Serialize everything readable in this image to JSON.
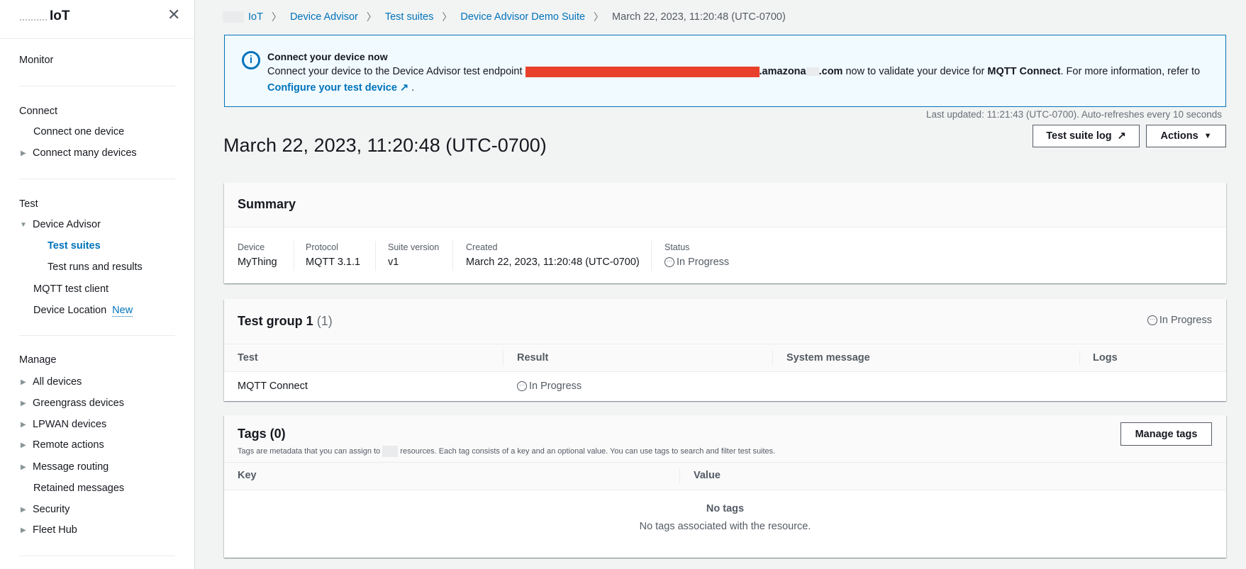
{
  "sidebar": {
    "title": "IoT",
    "sections": [
      {
        "heading": "Monitor"
      },
      {
        "heading": "Connect",
        "items": [
          "Connect one device",
          "Connect many devices"
        ]
      },
      {
        "heading": "Test",
        "items": [
          "Device Advisor",
          "Test suites",
          "Test runs and results",
          "MQTT test client",
          "Device Location"
        ],
        "new_badge": "New"
      },
      {
        "heading": "Manage",
        "items": [
          "All devices",
          "Greengrass devices",
          "LPWAN devices",
          "Remote actions",
          "Message routing",
          "Retained messages",
          "Security",
          "Fleet Hub"
        ]
      }
    ]
  },
  "breadcrumb": [
    "IoT",
    "Device Advisor",
    "Test suites",
    "Device Advisor Demo Suite",
    "March 22, 2023, 11:20:48 (UTC-0700)"
  ],
  "info": {
    "title": "Connect your device now",
    "text_before": "Connect your device to the Device Advisor test endpoint ",
    "endpoint_suffix_a": ".amazona",
    "endpoint_suffix_b": ".com",
    "text_mid": " now to validate your device for ",
    "test_name": "MQTT Connect",
    "text_after": ". For more information, refer to",
    "link": "Configure your test device",
    "period": "."
  },
  "last_updated": "Last updated: 11:21:43 (UTC-0700). Auto-refreshes every 10 seconds",
  "page_title": "March 22, 2023, 11:20:48 (UTC-0700)",
  "buttons": {
    "log": "Test suite log",
    "actions": "Actions",
    "manage_tags": "Manage tags"
  },
  "summary": {
    "title": "Summary",
    "fields": [
      {
        "label": "Device",
        "value": "MyThing"
      },
      {
        "label": "Protocol",
        "value": "MQTT 3.1.1"
      },
      {
        "label": "Suite version",
        "value": "v1"
      },
      {
        "label": "Created",
        "value": "March 22, 2023, 11:20:48 (UTC-0700)"
      },
      {
        "label": "Status",
        "value": "In Progress"
      }
    ]
  },
  "test_group": {
    "title": "Test group 1",
    "count": "(1)",
    "status": "In Progress",
    "columns": [
      "Test",
      "Result",
      "System message",
      "Logs"
    ],
    "rows": [
      {
        "test": "MQTT Connect",
        "result": "In Progress",
        "system_message": "",
        "logs": ""
      }
    ]
  },
  "tags": {
    "title": "Tags (0)",
    "desc_a": "Tags are metadata that you can assign to ",
    "desc_b": " resources. Each tag consists of a key and an optional value. You can use tags to search and filter test suites.",
    "columns": [
      "Key",
      "Value"
    ],
    "empty_title": "No tags",
    "empty_desc": "No tags associated with the resource."
  },
  "colors": {
    "accent": "#0073bb",
    "info_bg": "#f1faff",
    "redaction": "#e8402a"
  }
}
